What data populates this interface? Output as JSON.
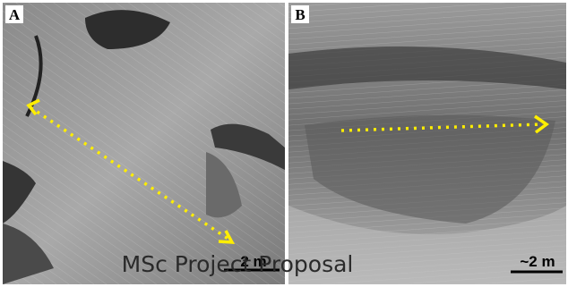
{
  "panels": [
    {
      "label": "A",
      "scale": "2 m"
    },
    {
      "label": "B",
      "scale": "~2 m"
    }
  ],
  "watermark": "MSc Project Proposal"
}
